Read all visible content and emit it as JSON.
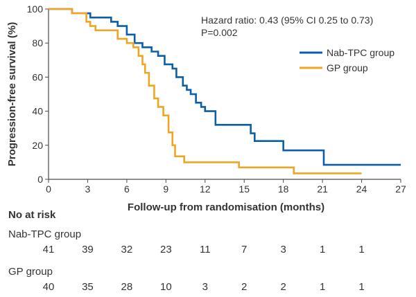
{
  "chart_data": {
    "type": "line",
    "step": true,
    "xlabel": "Follow-up from randomisation (months)",
    "ylabel": "Progression-free survival (%)",
    "xlim": [
      0,
      27
    ],
    "ylim": [
      0,
      100
    ],
    "xticks": [
      0,
      3,
      6,
      9,
      12,
      15,
      18,
      21,
      24,
      27
    ],
    "yticks": [
      0,
      20,
      40,
      60,
      80,
      100
    ],
    "grid": false,
    "legend_position": "right",
    "annotation": {
      "line1": "Hazard ratio: 0.43 (95% CI 0.25 to 0.73)",
      "line2": "P=0.002"
    },
    "series": [
      {
        "name": "Nab-TPC group",
        "color": "#0b5ea8",
        "x": [
          0,
          1.8,
          3.2,
          4.8,
          5.3,
          6.0,
          6.6,
          7.2,
          7.9,
          8.4,
          8.9,
          9.5,
          9.8,
          10.3,
          10.6,
          10.9,
          11.3,
          11.7,
          12.0,
          12.6,
          12.8,
          15.5,
          15.8,
          16.8,
          18.0,
          20.8,
          21.1,
          27.0
        ],
        "y": [
          100,
          97.5,
          95,
          92.5,
          90,
          85,
          80,
          77.5,
          75,
          72.5,
          67.5,
          65,
          60,
          55,
          52.5,
          50,
          45,
          42.5,
          40,
          40,
          32,
          27,
          22.5,
          22.5,
          17,
          17,
          8.5,
          8.5
        ]
      },
      {
        "name": "GP group",
        "color": "#f0a522",
        "x": [
          0,
          1.8,
          2.9,
          3.2,
          3.6,
          5.3,
          6.0,
          6.5,
          6.9,
          7.2,
          7.4,
          7.7,
          8.1,
          8.4,
          8.8,
          9.2,
          9.5,
          9.7,
          10.4,
          14.6,
          18.8,
          24.0
        ],
        "y": [
          100,
          97.5,
          92.5,
          90,
          87.5,
          82.5,
          80,
          77.5,
          72.5,
          67.5,
          62.5,
          55,
          47.5,
          42.5,
          37.5,
          27.5,
          20,
          13.5,
          10,
          7,
          3.5,
          3.5
        ]
      }
    ],
    "risk_table": {
      "heading": "No at risk",
      "times": [
        0,
        3,
        6,
        9,
        12,
        15,
        18,
        21,
        24
      ],
      "groups": [
        {
          "name": "Nab-TPC group",
          "counts": [
            "41",
            "39",
            "32",
            "23",
            "11",
            "7",
            "3",
            "1",
            "1"
          ]
        },
        {
          "name": "GP group",
          "counts": [
            "40",
            "35",
            "28",
            "10",
            "3",
            "2",
            "2",
            "1",
            "1"
          ]
        }
      ]
    }
  }
}
